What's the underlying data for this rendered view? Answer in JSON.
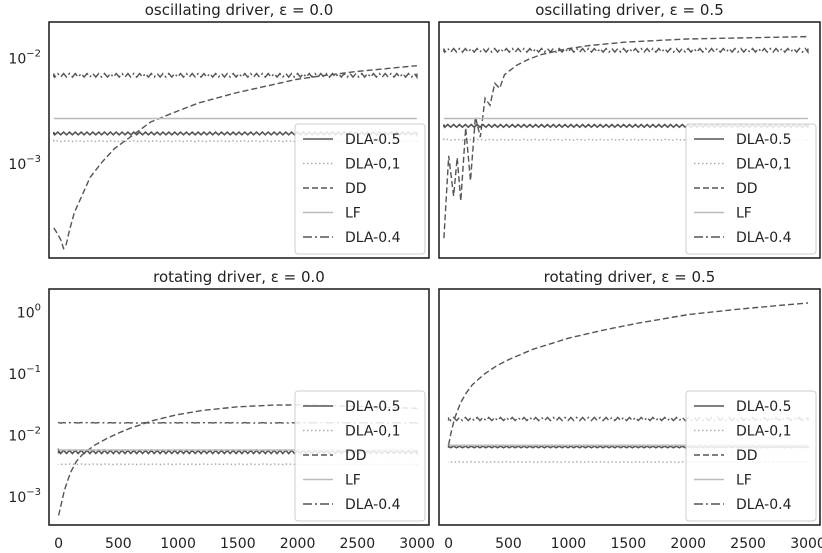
{
  "chart_data": [
    {
      "type": "line",
      "title": "oscillating driver, ε = 0.0",
      "yscale": "log",
      "ylim": [
        0.00013,
        0.022
      ],
      "xlim": [
        -40,
        3100
      ],
      "yticks": [
        {
          "value": 0.001,
          "base": "10",
          "exp": "−3"
        },
        {
          "value": 0.01,
          "base": "10",
          "exp": "−2"
        }
      ],
      "xticks": [],
      "legend_location": "lower-right",
      "series": [
        {
          "name": "DLA-0.5",
          "style": "solid",
          "color": "#555555",
          "kind": "constant",
          "value": 0.00195,
          "band": 1.03
        },
        {
          "name": "DLA-0,1",
          "style": "dotted",
          "color": "#aaaaaa",
          "kind": "constant",
          "value": 0.00165,
          "band": 1.01
        },
        {
          "name": "DD",
          "style": "dashed",
          "color": "#555555",
          "kind": "growth",
          "x": [
            0,
            30,
            60,
            80,
            100,
            130,
            170,
            220,
            300,
            400,
            500,
            600,
            800,
            1000,
            1200,
            1500,
            1800,
            2000,
            2200,
            2500,
            2800,
            3000
          ],
          "values": [
            0.00025,
            0.00022,
            0.00019,
            0.00016,
            0.00017,
            0.00024,
            0.00035,
            0.00047,
            0.00075,
            0.00105,
            0.0014,
            0.0017,
            0.0025,
            0.0031,
            0.0038,
            0.0047,
            0.0056,
            0.0063,
            0.0068,
            0.0075,
            0.0081,
            0.0085
          ]
        },
        {
          "name": "LF",
          "style": "solid",
          "color": "#bbbbbb",
          "kind": "constant",
          "value": 0.0027,
          "band": 1.0
        },
        {
          "name": "DLA-0.4",
          "style": "dashdot",
          "color": "#555555",
          "kind": "constant",
          "value": 0.0069,
          "band": 1.04
        }
      ]
    },
    {
      "type": "line",
      "title": "oscillating driver, ε = 0.5",
      "yscale": "log",
      "ylim": [
        0.00013,
        0.022
      ],
      "xlim": [
        -40,
        3100
      ],
      "yticks": [],
      "xticks": [],
      "legend_location": "lower-right",
      "series": [
        {
          "name": "DLA-0.5",
          "style": "solid",
          "color": "#555555",
          "kind": "constant",
          "value": 0.0023,
          "band": 1.03
        },
        {
          "name": "DLA-0,1",
          "style": "dotted",
          "color": "#aaaaaa",
          "kind": "constant",
          "value": 0.0017,
          "band": 1.01
        },
        {
          "name": "DD",
          "style": "dashed",
          "color": "#555555",
          "kind": "growth",
          "x": [
            0,
            40,
            80,
            110,
            140,
            180,
            220,
            260,
            300,
            340,
            380,
            420,
            460,
            500,
            600,
            700,
            800,
            1000,
            1200,
            1500,
            2000,
            2500,
            3000
          ],
          "values": [
            0.0002,
            0.0012,
            0.0005,
            0.00115,
            0.00045,
            0.0022,
            0.0007,
            0.0028,
            0.0018,
            0.0042,
            0.0036,
            0.0058,
            0.0052,
            0.007,
            0.0086,
            0.0098,
            0.0108,
            0.0122,
            0.0132,
            0.0142,
            0.0152,
            0.0156,
            0.016
          ]
        },
        {
          "name": "LF",
          "style": "solid",
          "color": "#bbbbbb",
          "kind": "constant",
          "value": 0.0027,
          "band": 1.0
        },
        {
          "name": "DLA-0.4",
          "style": "dashdot",
          "color": "#555555",
          "kind": "constant",
          "value": 0.0119,
          "band": 1.04
        }
      ]
    },
    {
      "type": "line",
      "title": "rotating driver, ε = 0.0",
      "yscale": "log",
      "ylim": [
        0.00035,
        2.4
      ],
      "xlim": [
        -80,
        3100
      ],
      "yticks": [
        {
          "value": 0.001,
          "base": "10",
          "exp": "−3"
        },
        {
          "value": 0.01,
          "base": "10",
          "exp": "−2"
        },
        {
          "value": 0.1,
          "base": "10",
          "exp": "−1"
        },
        {
          "value": 1,
          "base": "10",
          "exp": "0"
        }
      ],
      "xticks": [
        0,
        500,
        1000,
        1500,
        2000,
        2500,
        3000
      ],
      "legend_location": "lower-right",
      "series": [
        {
          "name": "DLA-0.5",
          "style": "solid",
          "color": "#555555",
          "kind": "constant",
          "value": 0.0054,
          "band": 1.06
        },
        {
          "name": "DLA-0,1",
          "style": "dotted",
          "color": "#aaaaaa",
          "kind": "constant",
          "value": 0.0034,
          "band": 1.01
        },
        {
          "name": "DD",
          "style": "dashed",
          "color": "#555555",
          "kind": "growth",
          "x": [
            0,
            50,
            100,
            150,
            200,
            300,
            400,
            500,
            600,
            800,
            1000,
            1200,
            1500,
            1800,
            2000,
            2200,
            2500,
            2800,
            3000
          ],
          "values": [
            0.0005,
            0.0013,
            0.0025,
            0.0038,
            0.0049,
            0.0069,
            0.0088,
            0.0109,
            0.0131,
            0.0177,
            0.0219,
            0.0254,
            0.0292,
            0.0311,
            0.0313,
            0.0308,
            0.0296,
            0.0283,
            0.0276
          ]
        },
        {
          "name": "LF",
          "style": "solid",
          "color": "#bbbbbb",
          "kind": "constant",
          "value": 0.0058,
          "band": 1.0
        },
        {
          "name": "DLA-0.4",
          "style": "dashdot",
          "color": "#555555",
          "kind": "constant",
          "value": 0.016,
          "band": 1.01
        }
      ]
    },
    {
      "type": "line",
      "title": "rotating driver, ε = 0.5",
      "yscale": "log",
      "ylim": [
        0.00035,
        2.4
      ],
      "xlim": [
        -80,
        3100
      ],
      "yticks": [],
      "xticks": [
        0,
        500,
        1000,
        1500,
        2000,
        2500,
        3000
      ],
      "legend_location": "lower-right",
      "series": [
        {
          "name": "DLA-0.5",
          "style": "solid",
          "color": "#555555",
          "kind": "constant",
          "value": 0.0065,
          "band": 1.03
        },
        {
          "name": "DLA-0,1",
          "style": "dotted",
          "color": "#aaaaaa",
          "kind": "constant",
          "value": 0.0037,
          "band": 1.01
        },
        {
          "name": "DD",
          "style": "dashed",
          "color": "#555555",
          "kind": "growth",
          "x": [
            0,
            20,
            50,
            100,
            150,
            200,
            300,
            400,
            500,
            700,
            1000,
            1300,
            1600,
            2000,
            2400,
            2800,
            3000
          ],
          "values": [
            0.007,
            0.011,
            0.019,
            0.034,
            0.05,
            0.067,
            0.1,
            0.135,
            0.17,
            0.25,
            0.38,
            0.52,
            0.68,
            0.92,
            1.12,
            1.32,
            1.42
          ]
        },
        {
          "name": "LF",
          "style": "solid",
          "color": "#bbbbbb",
          "kind": "constant",
          "value": 0.0069,
          "band": 1.0
        },
        {
          "name": "DLA-0.4",
          "style": "dashdot",
          "color": "#555555",
          "kind": "constant",
          "value": 0.0185,
          "band": 1.06
        }
      ]
    }
  ]
}
